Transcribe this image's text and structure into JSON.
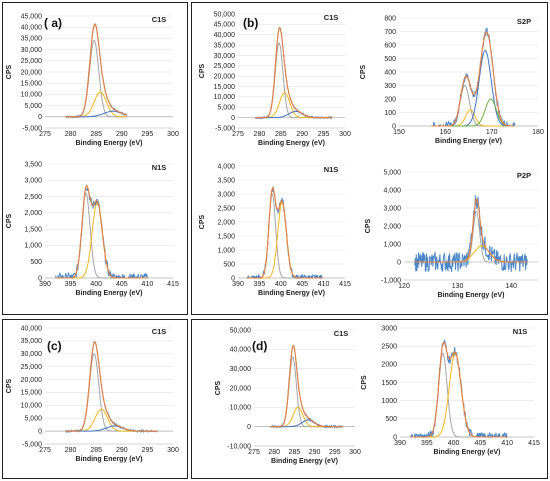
{
  "panel_labels": {
    "a": "( a)",
    "b": "(b)",
    "c": "(c)",
    "d": "(d)"
  },
  "colors": {
    "raw": "#4a86c8",
    "fit": "#e8813f",
    "comp1": "#a5a5a5",
    "comp2": "#f2b71f",
    "comp3": "#4472c4",
    "comp4": "#70ad47"
  },
  "chart_data": [
    {
      "id": "a-c1s",
      "type": "line",
      "title": "C1S",
      "xlabel": "Binding Energy (eV)",
      "ylabel": "CPS",
      "xlim": [
        275,
        300
      ],
      "ylim": [
        -5000,
        45000
      ],
      "xticks": [
        275,
        280,
        285,
        290,
        295,
        300
      ],
      "xtick_labels": [
        "275",
        "280",
        "285",
        "290",
        "295",
        "300"
      ],
      "yticks": [
        -5000,
        0,
        5000,
        10000,
        15000,
        20000,
        25000,
        30000,
        35000,
        40000,
        45000
      ],
      "ytick_labels": [
        "-5,000",
        "0",
        "5,000",
        "10,000",
        "15,000",
        "20,000",
        "25,000",
        "30,000",
        "35,000",
        "40,000",
        "45,000"
      ],
      "peaks": [
        {
          "c": 284.6,
          "h": 34000,
          "w": 0.9,
          "color": "comp1"
        },
        {
          "c": 285.8,
          "h": 11000,
          "w": 1.2,
          "color": "comp2"
        },
        {
          "c": 288.3,
          "h": 2500,
          "w": 1.8,
          "color": "comp3"
        }
      ],
      "noise": 400,
      "xmin_data": 279,
      "xmax_data": 291
    },
    {
      "id": "b-c1s",
      "type": "line",
      "title": "C1S",
      "xlabel": "Binding Energy (eV)",
      "ylabel": "CPS",
      "xlim": [
        275,
        300
      ],
      "ylim": [
        -5000,
        50000
      ],
      "xticks": [
        275,
        280,
        285,
        290,
        295,
        300
      ],
      "xtick_labels": [
        "275",
        "280",
        "285",
        "290",
        "295",
        "300"
      ],
      "yticks": [
        -5000,
        0,
        5000,
        10000,
        15000,
        20000,
        25000,
        30000,
        35000,
        40000,
        45000,
        50000
      ],
      "ytick_labels": [
        "-5,000",
        "0",
        "5,000",
        "10,000",
        "15,000",
        "20,000",
        "25,000",
        "30,000",
        "35,000",
        "40,000",
        "45,000",
        "50,000"
      ],
      "peaks": [
        {
          "c": 284.6,
          "h": 36000,
          "w": 0.9,
          "color": "comp1"
        },
        {
          "c": 285.9,
          "h": 12000,
          "w": 1.2,
          "color": "comp2"
        },
        {
          "c": 288.5,
          "h": 3000,
          "w": 1.6,
          "color": "comp3"
        }
      ],
      "noise": 400,
      "xmin_data": 279,
      "xmax_data": 297
    },
    {
      "id": "b-s2p",
      "type": "line",
      "title": "S2P",
      "xlabel": "Binding Energy (eV)",
      "ylabel": "CPS",
      "xlim": [
        150,
        180
      ],
      "ylim": [
        0,
        800
      ],
      "xticks": [
        150,
        160,
        170,
        180
      ],
      "xtick_labels": [
        "150",
        "160",
        "170",
        "180"
      ],
      "yticks": [
        0,
        100,
        200,
        300,
        400,
        500,
        600,
        700,
        800
      ],
      "ytick_labels": [
        "0",
        "100",
        "200",
        "300",
        "400",
        "500",
        "600",
        "700",
        "800"
      ],
      "peaks": [
        {
          "c": 164.2,
          "h": 300,
          "w": 1.0,
          "color": "comp1"
        },
        {
          "c": 165.4,
          "h": 120,
          "w": 1.0,
          "color": "comp2"
        },
        {
          "c": 168.6,
          "h": 560,
          "w": 1.3,
          "color": "comp3"
        },
        {
          "c": 169.8,
          "h": 200,
          "w": 1.2,
          "color": "comp4"
        }
      ],
      "noise": 30,
      "xmin_data": 157,
      "xmax_data": 175
    },
    {
      "id": "a-n1s",
      "type": "line",
      "title": "N1S",
      "xlabel": "Binding Energy (eV)",
      "ylabel": "CPS",
      "xlim": [
        390,
        415
      ],
      "ylim": [
        0,
        3500
      ],
      "xticks": [
        390,
        395,
        400,
        405,
        410,
        415
      ],
      "xtick_labels": [
        "390",
        "395",
        "400",
        "405",
        "410",
        "415"
      ],
      "yticks": [
        0,
        500,
        1000,
        1500,
        2000,
        2500,
        3000,
        3500
      ],
      "ytick_labels": [
        "0",
        "500",
        "1,000",
        "1,500",
        "2,000",
        "2,500",
        "3,000",
        "3,500"
      ],
      "peaks": [
        {
          "c": 398.0,
          "h": 2600,
          "w": 0.8,
          "color": "comp1"
        },
        {
          "c": 400.2,
          "h": 2300,
          "w": 1.0,
          "color": "comp2"
        }
      ],
      "noise": 150,
      "xmin_data": 392,
      "xmax_data": 410
    },
    {
      "id": "b-n1s",
      "type": "line",
      "title": "N1S",
      "xlabel": "Binding Energy (eV)",
      "ylabel": "CPS",
      "xlim": [
        390,
        415
      ],
      "ylim": [
        0,
        4000
      ],
      "xticks": [
        390,
        395,
        400,
        405,
        410,
        415
      ],
      "xtick_labels": [
        "390",
        "395",
        "400",
        "405",
        "410",
        "415"
      ],
      "yticks": [
        0,
        500,
        1000,
        1500,
        2000,
        2500,
        3000,
        3500,
        4000
      ],
      "ytick_labels": [
        "0",
        "500",
        "1,000",
        "1,500",
        "2,000",
        "2,500",
        "3,000",
        "3,500",
        "4,000"
      ],
      "peaks": [
        {
          "c": 398.0,
          "h": 3000,
          "w": 0.8,
          "color": "comp1"
        },
        {
          "c": 400.3,
          "h": 2700,
          "w": 1.0,
          "color": "comp2"
        }
      ],
      "noise": 120,
      "xmin_data": 392,
      "xmax_data": 410
    },
    {
      "id": "b-p2p",
      "type": "line",
      "title": "P2P",
      "xlabel": "Binding Energy (eV)",
      "ylabel": "CPS",
      "xlim": [
        120,
        145
      ],
      "ylim": [
        -1000,
        5000
      ],
      "xticks": [
        120,
        130,
        140
      ],
      "xtick_labels": [
        "120",
        "130",
        "140"
      ],
      "yticks": [
        -1000,
        0,
        1000,
        2000,
        3000,
        4000,
        5000
      ],
      "ytick_labels": [
        "-1,000",
        "0",
        "1,000",
        "2,000",
        "3,000",
        "4,000",
        "5,000"
      ],
      "peaks": [
        {
          "c": 133.5,
          "h": 2800,
          "w": 0.6,
          "color": "comp1"
        },
        {
          "c": 134.5,
          "h": 900,
          "w": 1.4,
          "color": "comp2"
        }
      ],
      "noise": 550,
      "xmin_data": 122,
      "xmax_data": 143
    },
    {
      "id": "c-c1s",
      "type": "line",
      "title": "C1S",
      "xlabel": "Binding Energy (eV)",
      "ylabel": "CPS",
      "xlim": [
        275,
        300
      ],
      "ylim": [
        -5000,
        40000
      ],
      "xticks": [
        275,
        280,
        285,
        290,
        295,
        300
      ],
      "xtick_labels": [
        "275",
        "280",
        "285",
        "290",
        "295",
        "300"
      ],
      "yticks": [
        -5000,
        0,
        5000,
        10000,
        15000,
        20000,
        25000,
        30000,
        35000,
        40000
      ],
      "ytick_labels": [
        "-5,000",
        "0",
        "5,000",
        "10,000",
        "15,000",
        "20,000",
        "25,000",
        "30,000",
        "35,000",
        "40,000"
      ],
      "peaks": [
        {
          "c": 284.6,
          "h": 30000,
          "w": 0.9,
          "color": "comp1"
        },
        {
          "c": 286.0,
          "h": 8500,
          "w": 1.2,
          "color": "comp2"
        },
        {
          "c": 288.6,
          "h": 2000,
          "w": 1.6,
          "color": "comp3"
        }
      ],
      "noise": 350,
      "xmin_data": 279,
      "xmax_data": 297
    },
    {
      "id": "d-c1s",
      "type": "line",
      "title": "C1S",
      "xlabel": "Binding Energy (eV)",
      "ylabel": "CPS",
      "xlim": [
        275,
        300
      ],
      "ylim": [
        -10000,
        50000
      ],
      "xticks": [
        275,
        280,
        285,
        290,
        295,
        300
      ],
      "xtick_labels": [
        "275",
        "280",
        "285",
        "290",
        "295",
        "300"
      ],
      "yticks": [
        -10000,
        0,
        10000,
        20000,
        30000,
        40000,
        50000
      ],
      "ytick_labels": [
        "-10,000",
        "0",
        "10,000",
        "20,000",
        "30,000",
        "40,000",
        "50,000"
      ],
      "peaks": [
        {
          "c": 284.6,
          "h": 36000,
          "w": 0.9,
          "color": "comp1"
        },
        {
          "c": 285.9,
          "h": 10000,
          "w": 1.2,
          "color": "comp2"
        },
        {
          "c": 288.4,
          "h": 3500,
          "w": 1.5,
          "color": "comp3"
        }
      ],
      "noise": 500,
      "xmin_data": 279,
      "xmax_data": 297
    },
    {
      "id": "d-n1s",
      "type": "line",
      "title": "N1S",
      "xlabel": "Binding Energy (eV)",
      "ylabel": "CPS",
      "xlim": [
        390,
        415
      ],
      "ylim": [
        0,
        3000
      ],
      "xticks": [
        390,
        395,
        400,
        405,
        410,
        415
      ],
      "xtick_labels": [
        "390",
        "395",
        "400",
        "405",
        "410",
        "415"
      ],
      "yticks": [
        0,
        500,
        1000,
        1500,
        2000,
        2500,
        3000
      ],
      "ytick_labels": [
        "0",
        "500",
        "1000",
        "1500",
        "2000",
        "2500",
        "3000"
      ],
      "peaks": [
        {
          "c": 398.0,
          "h": 2300,
          "w": 0.8,
          "color": "comp1"
        },
        {
          "c": 400.3,
          "h": 2300,
          "w": 1.1,
          "color": "comp2"
        }
      ],
      "noise": 130,
      "xmin_data": 392,
      "xmax_data": 410
    }
  ]
}
